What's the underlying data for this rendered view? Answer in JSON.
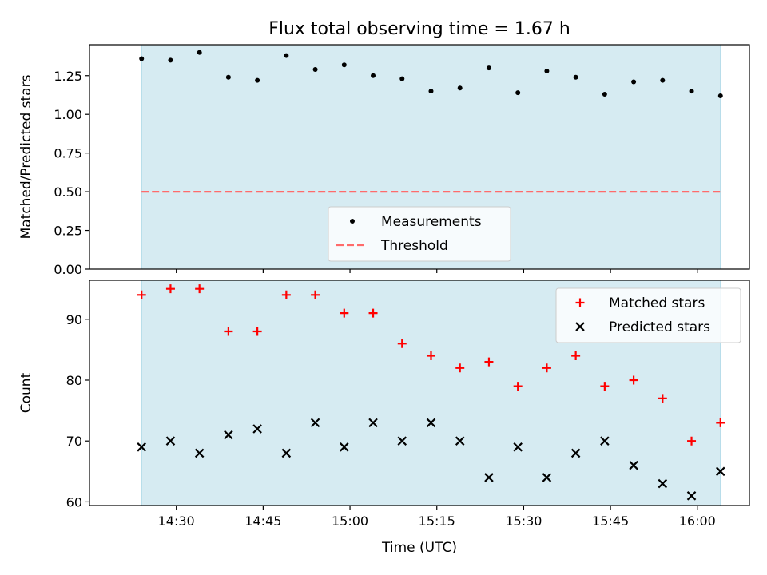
{
  "title": "Flux total observing time = 1.67 h",
  "xlabel": "Time (UTC)",
  "x_ticks": [
    "14:30",
    "14:45",
    "15:00",
    "15:15",
    "15:30",
    "15:45",
    "16:00"
  ],
  "chart_data": [
    {
      "type": "scatter",
      "ylabel": "Matched/Predicted stars",
      "xlim": [
        "14:15",
        "16:09"
      ],
      "ylim": [
        0,
        1.45
      ],
      "y_ticks": [
        "0.00",
        "0.25",
        "0.50",
        "0.75",
        "1.00",
        "1.25"
      ],
      "shaded_span": [
        "14:24",
        "16:04"
      ],
      "legend_position": "lower center",
      "series": [
        {
          "name": "Measurements",
          "marker": "dot",
          "color": "#000000",
          "x": [
            "14:24",
            "14:29",
            "14:34",
            "14:39",
            "14:44",
            "14:49",
            "14:54",
            "14:59",
            "15:04",
            "15:09",
            "15:14",
            "15:19",
            "15:24",
            "15:29",
            "15:34",
            "15:39",
            "15:44",
            "15:49",
            "15:54",
            "15:59",
            "16:04"
          ],
          "y": [
            1.36,
            1.35,
            1.4,
            1.24,
            1.22,
            1.38,
            1.29,
            1.32,
            1.25,
            1.23,
            1.15,
            1.17,
            1.3,
            1.14,
            1.28,
            1.24,
            1.13,
            1.21,
            1.22,
            1.15,
            1.12
          ]
        },
        {
          "name": "Threshold",
          "style": "dashed-line",
          "color": "#ff6b6b",
          "x": [
            "14:24",
            "16:04"
          ],
          "y": [
            0.5,
            0.5
          ]
        }
      ]
    },
    {
      "type": "scatter",
      "ylabel": "Count",
      "xlim": [
        "14:15",
        "16:09"
      ],
      "ylim": [
        59.4,
        96.4
      ],
      "y_ticks": [
        "60",
        "70",
        "80",
        "90"
      ],
      "shaded_span": [
        "14:24",
        "16:04"
      ],
      "legend_position": "upper right",
      "series": [
        {
          "name": "Matched stars",
          "marker": "plus",
          "color": "#ff0000",
          "x": [
            "14:24",
            "14:29",
            "14:34",
            "14:39",
            "14:44",
            "14:49",
            "14:54",
            "14:59",
            "15:04",
            "15:09",
            "15:14",
            "15:19",
            "15:24",
            "15:29",
            "15:34",
            "15:39",
            "15:44",
            "15:49",
            "15:54",
            "15:59",
            "16:04"
          ],
          "y": [
            94,
            95,
            95,
            88,
            88,
            94,
            94,
            91,
            91,
            86,
            84,
            82,
            83,
            79,
            82,
            84,
            79,
            80,
            77,
            70,
            73
          ]
        },
        {
          "name": "Predicted stars",
          "marker": "x",
          "color": "#000000",
          "x": [
            "14:24",
            "14:29",
            "14:34",
            "14:39",
            "14:44",
            "14:49",
            "14:54",
            "14:59",
            "15:04",
            "15:09",
            "15:14",
            "15:19",
            "15:24",
            "15:29",
            "15:34",
            "15:39",
            "15:44",
            "15:49",
            "15:54",
            "15:59",
            "16:04"
          ],
          "y": [
            69,
            70,
            68,
            71,
            72,
            68,
            73,
            69,
            73,
            70,
            73,
            70,
            64,
            69,
            64,
            68,
            70,
            66,
            63,
            61,
            65
          ]
        }
      ]
    }
  ],
  "colors": {
    "span_fill": "#add8e6",
    "axes_edge": "#000000"
  }
}
